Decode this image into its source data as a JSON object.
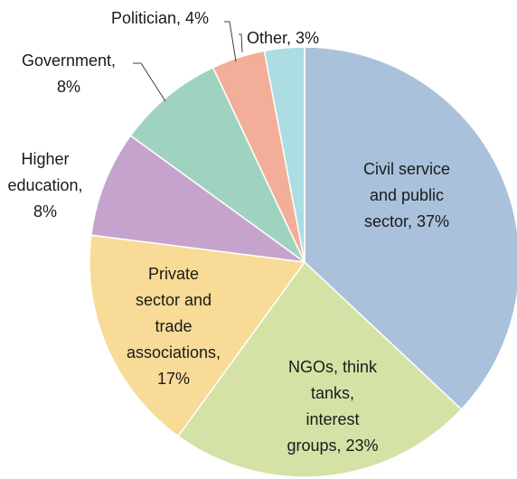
{
  "chart_data": {
    "type": "pie",
    "title": "",
    "slices": [
      {
        "label": "Civil service and public sector, 37%",
        "value": 37,
        "color": "#a9c1db"
      },
      {
        "label": "NGOs, think tanks, interest groups, 23%",
        "value": 23,
        "color": "#d4e2a6"
      },
      {
        "label": "Private sector and trade associations, 17%",
        "value": 17,
        "color": "#f7db96"
      },
      {
        "label": "Higher education, 8%",
        "value": 8,
        "color": "#c6a3cc"
      },
      {
        "label": "Government, 8%",
        "value": 8,
        "color": "#9fd3bf"
      },
      {
        "label": "Politician, 4%",
        "value": 4,
        "color": "#f2ae98"
      },
      {
        "label": "Other, 3%",
        "value": 3,
        "color": "#abdde2"
      }
    ]
  }
}
